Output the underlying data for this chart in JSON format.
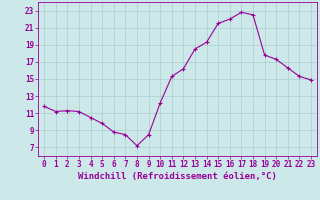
{
  "x": [
    0,
    1,
    2,
    3,
    4,
    5,
    6,
    7,
    8,
    9,
    10,
    11,
    12,
    13,
    14,
    15,
    16,
    17,
    18,
    19,
    20,
    21,
    22,
    23
  ],
  "y": [
    11.8,
    11.2,
    11.3,
    11.2,
    10.5,
    9.8,
    8.8,
    8.5,
    7.2,
    8.5,
    12.2,
    15.3,
    16.2,
    18.5,
    19.3,
    21.5,
    22.0,
    22.8,
    22.5,
    17.8,
    17.3,
    16.3,
    15.3,
    14.9
  ],
  "line_color": "#990099",
  "marker": "+",
  "marker_size": 3.5,
  "linewidth": 0.8,
  "bg_color": "#cce8e8",
  "grid_color": "#aacfcf",
  "xlabel": "Windchill (Refroidissement éolien,°C)",
  "xlabel_fontsize": 6.5,
  "tick_fontsize": 5.5,
  "ylim": [
    6,
    24
  ],
  "yticks": [
    7,
    9,
    11,
    13,
    15,
    17,
    19,
    21,
    23
  ],
  "xticks": [
    0,
    1,
    2,
    3,
    4,
    5,
    6,
    7,
    8,
    9,
    10,
    11,
    12,
    13,
    14,
    15,
    16,
    17,
    18,
    19,
    20,
    21,
    22,
    23
  ]
}
